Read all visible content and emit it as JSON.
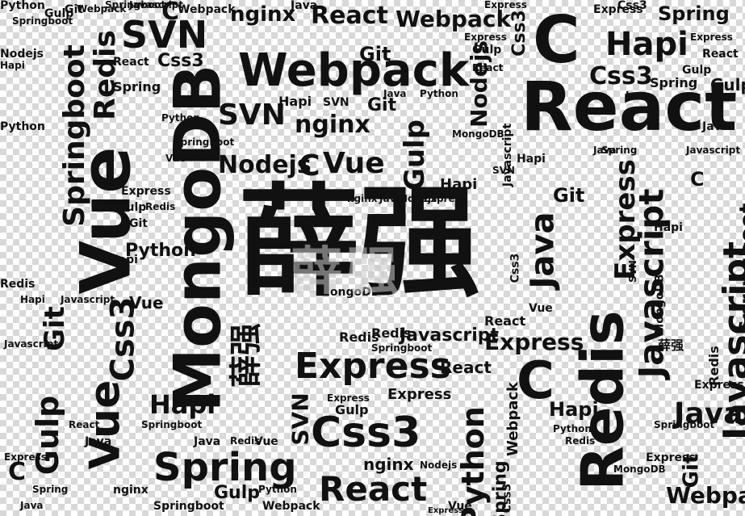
{
  "words": [
    "薛强",
    "React",
    "MongoDB",
    "Vue",
    "Webpack",
    "Redis",
    "Javascript",
    "Express",
    "Css3",
    "Spring",
    "SVN",
    "Springboot",
    "Java",
    "C",
    "Git",
    "Nodejs",
    "Gulp",
    "Python",
    "Hapi",
    "nginx"
  ]
}
